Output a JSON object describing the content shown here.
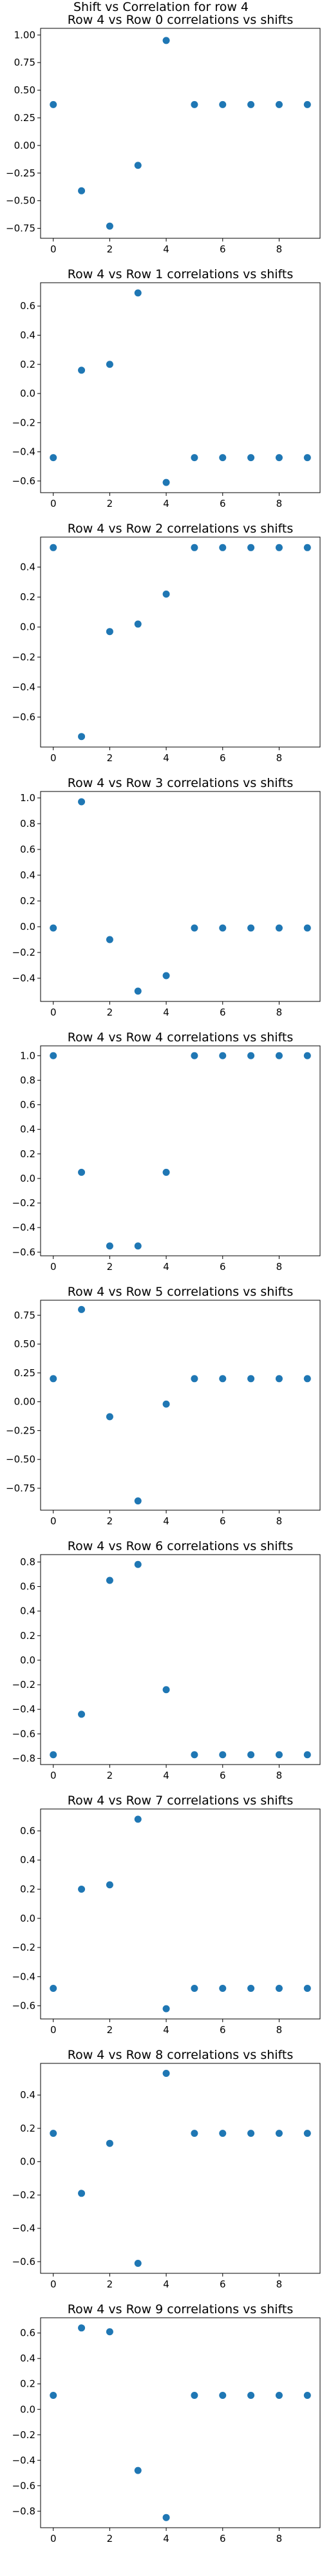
{
  "figure": {
    "suptitle": "Shift vs Correlation for row 4",
    "point_color": "#1f77b4"
  },
  "chart_data": [
    {
      "type": "scatter",
      "title": "Row 4 vs Row 0 correlations vs shifts",
      "x": [
        0,
        1,
        2,
        3,
        4,
        5,
        6,
        7,
        8,
        9
      ],
      "y": [
        0.37,
        -0.41,
        -0.73,
        -0.18,
        0.95,
        0.37,
        0.37,
        0.37,
        0.37,
        0.37
      ],
      "ylim": [
        -0.84,
        1.06
      ],
      "xticks": [
        0,
        2,
        4,
        6,
        8
      ],
      "yticks": [
        -0.75,
        -0.5,
        -0.25,
        0.0,
        0.25,
        0.5,
        0.75,
        1.0
      ],
      "ytick_labels": [
        "−0.75",
        "−0.50",
        "−0.25",
        "0.00",
        "0.25",
        "0.50",
        "0.75",
        "1.00"
      ]
    },
    {
      "type": "scatter",
      "title": "Row 4 vs Row 1 correlations vs shifts",
      "x": [
        0,
        1,
        2,
        3,
        4,
        5,
        6,
        7,
        8,
        9
      ],
      "y": [
        -0.44,
        0.16,
        0.2,
        0.69,
        -0.61,
        -0.44,
        -0.44,
        -0.44,
        -0.44,
        -0.44
      ],
      "ylim": [
        -0.68,
        0.76
      ],
      "xticks": [
        0,
        2,
        4,
        6,
        8
      ],
      "yticks": [
        -0.6,
        -0.4,
        -0.2,
        0.0,
        0.2,
        0.4,
        0.6
      ],
      "ytick_labels": [
        "−0.6",
        "−0.4",
        "−0.2",
        "0.0",
        "0.2",
        "0.4",
        "0.6"
      ]
    },
    {
      "type": "scatter",
      "title": "Row 4 vs Row 2 correlations vs shifts",
      "x": [
        0,
        1,
        2,
        3,
        4,
        5,
        6,
        7,
        8,
        9
      ],
      "y": [
        0.53,
        -0.73,
        -0.03,
        0.02,
        0.22,
        0.53,
        0.53,
        0.53,
        0.53,
        0.53
      ],
      "ylim": [
        -0.8,
        0.6
      ],
      "xticks": [
        0,
        2,
        4,
        6,
        8
      ],
      "yticks": [
        -0.6,
        -0.4,
        -0.2,
        0.0,
        0.2,
        0.4
      ],
      "ytick_labels": [
        "−0.6",
        "−0.4",
        "−0.2",
        "0.0",
        "0.2",
        "0.4"
      ]
    },
    {
      "type": "scatter",
      "title": "Row 4 vs Row 3 correlations vs shifts",
      "x": [
        0,
        1,
        2,
        3,
        4,
        5,
        6,
        7,
        8,
        9
      ],
      "y": [
        -0.01,
        0.97,
        -0.1,
        -0.5,
        -0.38,
        -0.01,
        -0.01,
        -0.01,
        -0.01,
        -0.01
      ],
      "ylim": [
        -0.58,
        1.05
      ],
      "xticks": [
        0,
        2,
        4,
        6,
        8
      ],
      "yticks": [
        -0.4,
        -0.2,
        0.0,
        0.2,
        0.4,
        0.6,
        0.8,
        1.0
      ],
      "ytick_labels": [
        "−0.4",
        "−0.2",
        "0.0",
        "0.2",
        "0.4",
        "0.6",
        "0.8",
        "1.0"
      ]
    },
    {
      "type": "scatter",
      "title": "Row 4 vs Row 4 correlations vs shifts",
      "x": [
        0,
        1,
        2,
        3,
        4,
        5,
        6,
        7,
        8,
        9
      ],
      "y": [
        1.0,
        0.05,
        -0.55,
        -0.55,
        0.05,
        1.0,
        1.0,
        1.0,
        1.0,
        1.0
      ],
      "ylim": [
        -0.63,
        1.08
      ],
      "xticks": [
        0,
        2,
        4,
        6,
        8
      ],
      "yticks": [
        -0.6,
        -0.4,
        -0.2,
        0.0,
        0.2,
        0.4,
        0.6,
        0.8,
        1.0
      ],
      "ytick_labels": [
        "−0.6",
        "−0.4",
        "−0.2",
        "0.0",
        "0.2",
        "0.4",
        "0.6",
        "0.8",
        "1.0"
      ]
    },
    {
      "type": "scatter",
      "title": "Row 4 vs Row 5 correlations vs shifts",
      "x": [
        0,
        1,
        2,
        3,
        4,
        5,
        6,
        7,
        8,
        9
      ],
      "y": [
        0.2,
        0.8,
        -0.13,
        -0.86,
        -0.02,
        0.2,
        0.2,
        0.2,
        0.2,
        0.2
      ],
      "ylim": [
        -0.94,
        0.88
      ],
      "xticks": [
        0,
        2,
        4,
        6,
        8
      ],
      "yticks": [
        -0.75,
        -0.5,
        -0.25,
        0.0,
        0.25,
        0.5,
        0.75
      ],
      "ytick_labels": [
        "−0.75",
        "−0.50",
        "−0.25",
        "0.00",
        "0.25",
        "0.50",
        "0.75"
      ]
    },
    {
      "type": "scatter",
      "title": "Row 4 vs Row 6 correlations vs shifts",
      "x": [
        0,
        1,
        2,
        3,
        4,
        5,
        6,
        7,
        8,
        9
      ],
      "y": [
        -0.77,
        -0.44,
        0.65,
        0.78,
        -0.24,
        -0.77,
        -0.77,
        -0.77,
        -0.77,
        -0.77
      ],
      "ylim": [
        -0.85,
        0.86
      ],
      "xticks": [
        0,
        2,
        4,
        6,
        8
      ],
      "yticks": [
        -0.8,
        -0.6,
        -0.4,
        -0.2,
        0.0,
        0.2,
        0.4,
        0.6,
        0.8
      ],
      "ytick_labels": [
        "−0.8",
        "−0.6",
        "−0.4",
        "−0.2",
        "0.0",
        "0.2",
        "0.4",
        "0.6",
        "0.8"
      ]
    },
    {
      "type": "scatter",
      "title": "Row 4 vs Row 7 correlations vs shifts",
      "x": [
        0,
        1,
        2,
        3,
        4,
        5,
        6,
        7,
        8,
        9
      ],
      "y": [
        -0.48,
        0.2,
        0.23,
        0.68,
        -0.62,
        -0.48,
        -0.48,
        -0.48,
        -0.48,
        -0.48
      ],
      "ylim": [
        -0.69,
        0.75
      ],
      "xticks": [
        0,
        2,
        4,
        6,
        8
      ],
      "yticks": [
        -0.6,
        -0.4,
        -0.2,
        0.0,
        0.2,
        0.4,
        0.6
      ],
      "ytick_labels": [
        "−0.6",
        "−0.4",
        "−0.2",
        "0.0",
        "0.2",
        "0.4",
        "0.6"
      ]
    },
    {
      "type": "scatter",
      "title": "Row 4 vs Row 8 correlations vs shifts",
      "x": [
        0,
        1,
        2,
        3,
        4,
        5,
        6,
        7,
        8,
        9
      ],
      "y": [
        0.17,
        -0.19,
        0.11,
        -0.61,
        0.53,
        0.17,
        0.17,
        0.17,
        0.17,
        0.17
      ],
      "ylim": [
        -0.67,
        0.59
      ],
      "xticks": [
        0,
        2,
        4,
        6,
        8
      ],
      "yticks": [
        -0.6,
        -0.4,
        -0.2,
        0.0,
        0.2,
        0.4
      ],
      "ytick_labels": [
        "−0.6",
        "−0.4",
        "−0.2",
        "0.0",
        "0.2",
        "0.4"
      ]
    },
    {
      "type": "scatter",
      "title": "Row 4 vs Row 9 correlations vs shifts",
      "x": [
        0,
        1,
        2,
        3,
        4,
        5,
        6,
        7,
        8,
        9
      ],
      "y": [
        0.11,
        0.64,
        0.61,
        -0.48,
        -0.85,
        0.11,
        0.11,
        0.11,
        0.11,
        0.11
      ],
      "ylim": [
        -0.93,
        0.72
      ],
      "xticks": [
        0,
        2,
        4,
        6,
        8
      ],
      "yticks": [
        -0.8,
        -0.6,
        -0.4,
        -0.2,
        0.0,
        0.2,
        0.4,
        0.6
      ],
      "ytick_labels": [
        "−0.8",
        "−0.6",
        "−0.4",
        "−0.2",
        "0.0",
        "0.2",
        "0.4",
        "0.6"
      ]
    }
  ]
}
